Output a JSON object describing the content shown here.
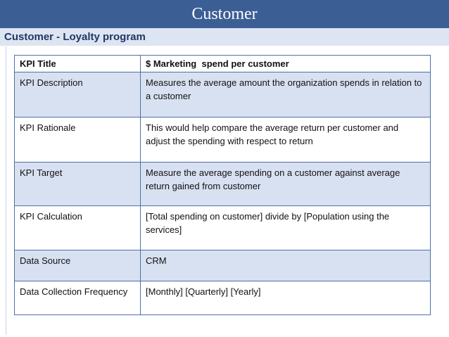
{
  "header": {
    "title": "Customer",
    "subtitle": "Customer - Loyalty program"
  },
  "table": {
    "rows": [
      {
        "label": "KPI Title",
        "value": "$ Marketing  spend per customer"
      },
      {
        "label": "KPI Description",
        "value": "Measures the average amount the organization spends in relation to a customer"
      },
      {
        "label": "KPI Rationale",
        "value": "This would help compare the average return per customer and adjust the spending with respect to return"
      },
      {
        "label": "KPI Target",
        "value": "Measure the average spending on a customer against average return gained from customer"
      },
      {
        "label": "KPI Calculation",
        "value": "[Total spending on customer] divide by [Population using the services]"
      },
      {
        "label": "Data Source",
        "value": "CRM"
      },
      {
        "label": "Data Collection Frequency",
        "value": "[Monthly] [Quarterly] [Yearly]"
      }
    ]
  },
  "colors": {
    "title_bar": "#3b5f94",
    "subtitle_bar": "#dde5f2",
    "row_shade": "#d8e1f1",
    "border": "#4f6fa6"
  }
}
